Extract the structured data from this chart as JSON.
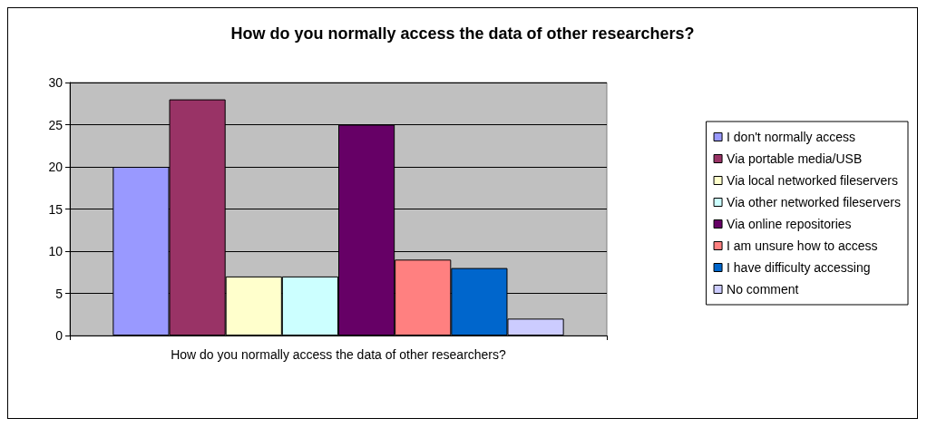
{
  "chart_data": {
    "type": "bar",
    "title": "How do you normally access the data of other researchers?",
    "categories": [
      "How do you normally access the data of other researchers?"
    ],
    "series": [
      {
        "name": "I don't normally access",
        "color": "#9999ff",
        "values": [
          20
        ]
      },
      {
        "name": "Via portable media/USB",
        "color": "#993366",
        "values": [
          28
        ]
      },
      {
        "name": "Via local networked fileservers",
        "color": "#ffffcc",
        "values": [
          7
        ]
      },
      {
        "name": "Via other networked fileservers",
        "color": "#ccffff",
        "values": [
          7
        ]
      },
      {
        "name": "Via online repositories",
        "color": "#660066",
        "values": [
          25
        ]
      },
      {
        "name": "I am unsure how to access",
        "color": "#ff8080",
        "values": [
          9
        ]
      },
      {
        "name": "I have difficulty accessing",
        "color": "#0066cc",
        "values": [
          8
        ]
      },
      {
        "name": "No comment",
        "color": "#ccccff",
        "values": [
          2
        ]
      }
    ],
    "ylim": [
      0,
      30
    ],
    "yticks": [
      0,
      5,
      10,
      15,
      20,
      25,
      30
    ],
    "grid": "y",
    "legend": "right"
  }
}
